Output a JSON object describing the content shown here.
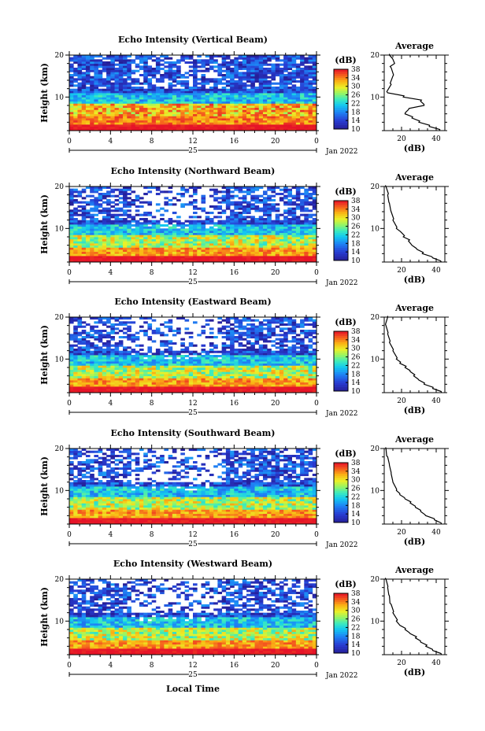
{
  "chart_data": [
    {
      "type": "heatmap",
      "title": "Echo Intensity (Vertical Beam)",
      "ylabel": "Height (km)",
      "xticks": [
        "0",
        "4",
        "8",
        "12",
        "16",
        "20",
        "0"
      ],
      "xlim": [
        0,
        24
      ],
      "ylim": [
        2,
        20
      ],
      "yticks": [
        "10",
        "20"
      ],
      "date_label": "25",
      "month_label": "Jan 2022",
      "colorbar": {
        "unit": "(dB)",
        "ticks": [
          "10",
          "14",
          "18",
          "22",
          "26",
          "30",
          "34",
          "38"
        ],
        "range": [
          10,
          38
        ]
      },
      "profile": {
        "title": "Average",
        "xlabel": "(dB)",
        "xticks": [
          "20",
          "40"
        ],
        "xlim": [
          10,
          45
        ],
        "points": [
          [
            42,
            2
          ],
          [
            36,
            3
          ],
          [
            30,
            4
          ],
          [
            26,
            5
          ],
          [
            22,
            6
          ],
          [
            24,
            7
          ],
          [
            33,
            8
          ],
          [
            31,
            9
          ],
          [
            21,
            10
          ],
          [
            12,
            11
          ],
          [
            14,
            13
          ],
          [
            15,
            15
          ],
          [
            14,
            17
          ],
          [
            16,
            18
          ],
          [
            15,
            19
          ],
          [
            13,
            20
          ]
        ]
      }
    },
    {
      "type": "heatmap",
      "title": "Echo Intensity (Northward Beam)",
      "ylabel": "Height (km)",
      "xticks": [
        "0",
        "4",
        "8",
        "12",
        "16",
        "20",
        "0"
      ],
      "xlim": [
        0,
        24
      ],
      "ylim": [
        2,
        20
      ],
      "yticks": [
        "10",
        "20"
      ],
      "date_label": "25",
      "month_label": "Jan 2022",
      "colorbar": {
        "unit": "(dB)",
        "ticks": [
          "10",
          "14",
          "18",
          "22",
          "26",
          "30",
          "34",
          "38"
        ],
        "range": [
          10,
          38
        ]
      },
      "profile": {
        "title": "Average",
        "xlabel": "(dB)",
        "xticks": [
          "20",
          "40"
        ],
        "xlim": [
          10,
          45
        ],
        "points": [
          [
            43,
            2
          ],
          [
            38,
            3
          ],
          [
            32,
            4
          ],
          [
            29,
            5
          ],
          [
            26,
            6
          ],
          [
            24,
            7
          ],
          [
            21,
            8
          ],
          [
            20,
            9
          ],
          [
            17,
            10
          ],
          [
            15,
            12
          ],
          [
            14,
            14
          ],
          [
            13,
            16
          ],
          [
            12,
            18
          ],
          [
            11,
            20
          ]
        ]
      }
    },
    {
      "type": "heatmap",
      "title": "Echo Intensity (Eastward Beam)",
      "ylabel": "Height (km)",
      "xticks": [
        "0",
        "4",
        "8",
        "12",
        "16",
        "20",
        "0"
      ],
      "xlim": [
        0,
        24
      ],
      "ylim": [
        2,
        20
      ],
      "yticks": [
        "10",
        "20"
      ],
      "date_label": "25",
      "month_label": "Jan 2022",
      "colorbar": {
        "unit": "(dB)",
        "ticks": [
          "10",
          "14",
          "18",
          "22",
          "26",
          "30",
          "34",
          "38"
        ],
        "range": [
          10,
          38
        ]
      },
      "profile": {
        "title": "Average",
        "xlabel": "(dB)",
        "xticks": [
          "20",
          "40"
        ],
        "xlim": [
          10,
          45
        ],
        "points": [
          [
            43,
            2
          ],
          [
            38,
            3
          ],
          [
            33,
            4
          ],
          [
            30,
            5
          ],
          [
            27,
            6
          ],
          [
            25,
            7
          ],
          [
            22,
            8
          ],
          [
            19,
            9
          ],
          [
            17,
            10
          ],
          [
            15,
            12
          ],
          [
            13,
            14
          ],
          [
            12,
            16
          ],
          [
            11,
            18
          ],
          [
            12,
            20
          ]
        ]
      }
    },
    {
      "type": "heatmap",
      "title": "Echo Intensity (Southward Beam)",
      "ylabel": "Height (km)",
      "xticks": [
        "0",
        "4",
        "8",
        "12",
        "16",
        "20",
        "0"
      ],
      "xlim": [
        0,
        24
      ],
      "ylim": [
        2,
        20
      ],
      "yticks": [
        "10",
        "20"
      ],
      "date_label": "25",
      "month_label": "Jan 2022",
      "colorbar": {
        "unit": "(dB)",
        "ticks": [
          "10",
          "14",
          "18",
          "22",
          "26",
          "30",
          "34",
          "38"
        ],
        "range": [
          10,
          38
        ]
      },
      "profile": {
        "title": "Average",
        "xlabel": "(dB)",
        "xticks": [
          "20",
          "40"
        ],
        "xlim": [
          10,
          45
        ],
        "points": [
          [
            43,
            2
          ],
          [
            39,
            3
          ],
          [
            34,
            4
          ],
          [
            31,
            5
          ],
          [
            28,
            6
          ],
          [
            25,
            7
          ],
          [
            22,
            8
          ],
          [
            19,
            9
          ],
          [
            17,
            10
          ],
          [
            15,
            12
          ],
          [
            14,
            14
          ],
          [
            13,
            16
          ],
          [
            12,
            18
          ],
          [
            11,
            20
          ]
        ]
      }
    },
    {
      "type": "heatmap",
      "title": "Echo Intensity (Westward Beam)",
      "ylabel": "Height (km)",
      "xticks": [
        "0",
        "4",
        "8",
        "12",
        "16",
        "20",
        "0"
      ],
      "xlim": [
        0,
        24
      ],
      "ylim": [
        2,
        20
      ],
      "yticks": [
        "10",
        "20"
      ],
      "date_label": "25",
      "month_label": "Jan 2022",
      "colorbar": {
        "unit": "(dB)",
        "ticks": [
          "10",
          "14",
          "18",
          "22",
          "26",
          "30",
          "34",
          "38"
        ],
        "range": [
          10,
          38
        ]
      },
      "profile": {
        "title": "Average",
        "xlabel": "(dB)",
        "xticks": [
          "20",
          "40"
        ],
        "xlim": [
          10,
          45
        ],
        "points": [
          [
            43,
            2
          ],
          [
            38,
            3
          ],
          [
            34,
            4
          ],
          [
            31,
            5
          ],
          [
            28,
            6
          ],
          [
            25,
            7
          ],
          [
            22,
            8
          ],
          [
            19,
            9
          ],
          [
            17,
            10
          ],
          [
            15,
            12
          ],
          [
            14,
            14
          ],
          [
            13,
            16
          ],
          [
            12,
            18
          ],
          [
            11,
            20
          ]
        ]
      }
    }
  ],
  "xlabel": "Local Time"
}
